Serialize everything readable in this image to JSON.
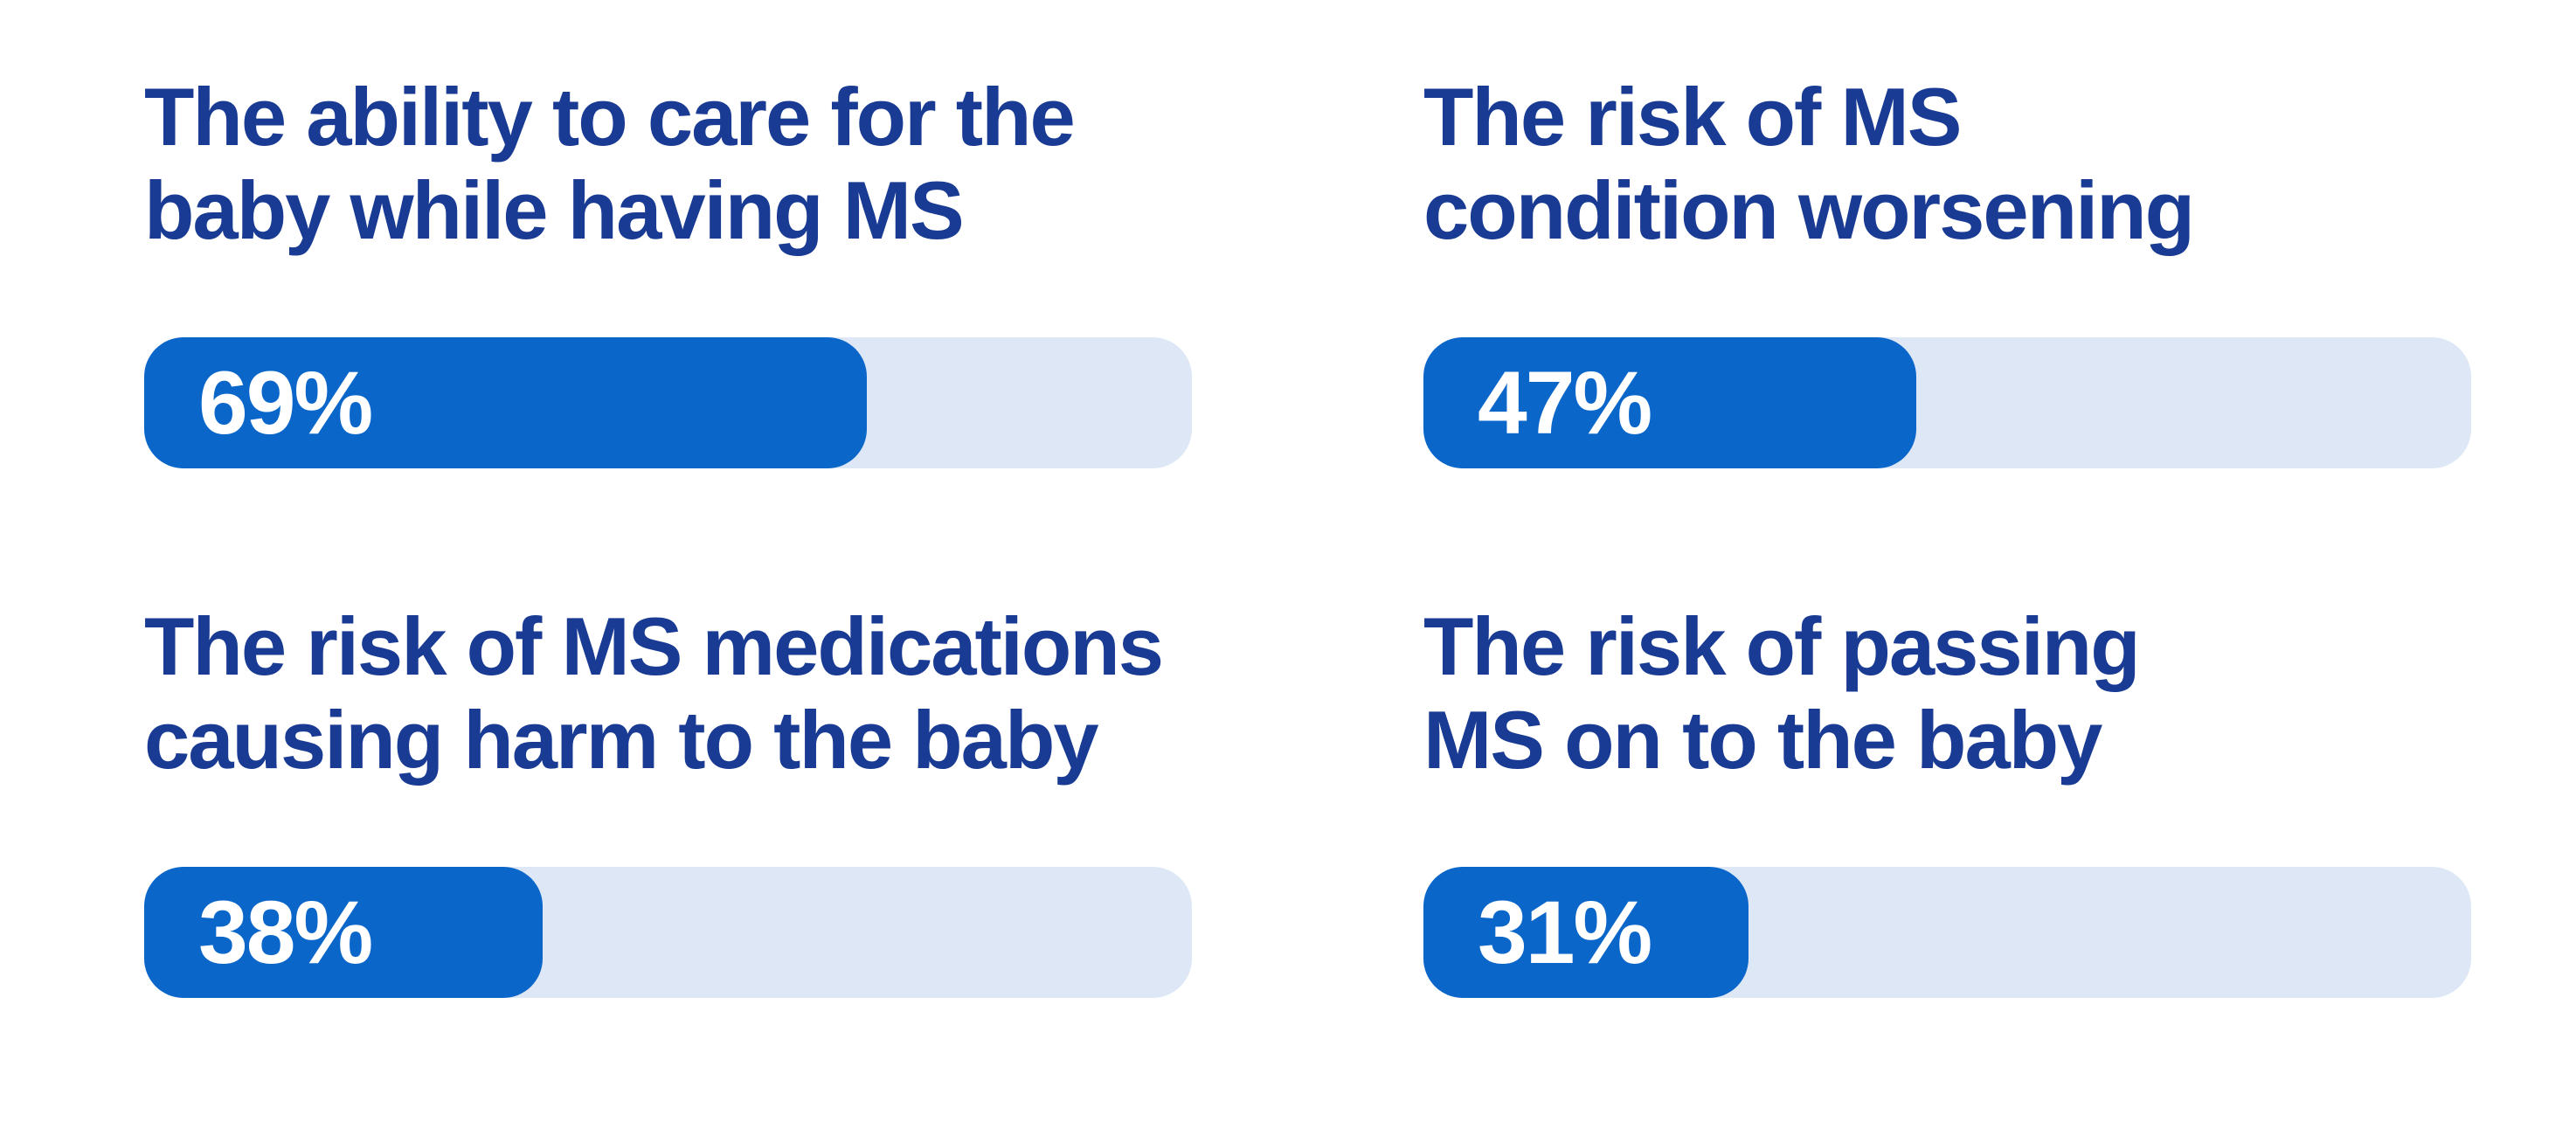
{
  "colors": {
    "bar_fill": "#0B66CA",
    "bar_track": "#DDE7F5",
    "heading_text": "#1A3B94",
    "value_text": "#FFFFFF",
    "background": "#FFFFFF"
  },
  "chart_data": {
    "type": "bar",
    "orientation": "horizontal",
    "layout": "2x2-grid",
    "unit": "%",
    "categories": [
      "The ability to care for the baby while having MS",
      "The risk of MS condition worsening",
      "The risk of MS medications causing harm to the baby",
      "The risk of passing MS on to the baby"
    ],
    "values": [
      69,
      47,
      38,
      31
    ],
    "value_labels": [
      "69%",
      "47%",
      "38%",
      "31%"
    ],
    "xlim": [
      0,
      100
    ],
    "grid": false,
    "legend": false,
    "data_label_position": "inside-bar-left"
  },
  "items": [
    {
      "label": "The ability to care for the\nbaby while having MS",
      "value": 69,
      "value_label": "69%"
    },
    {
      "label": "The risk of MS\ncondition worsening",
      "value": 47,
      "value_label": "47%"
    },
    {
      "label": "The risk of MS medications\ncausing harm to the baby",
      "value": 38,
      "value_label": "38%"
    },
    {
      "label": "The risk of passing\nMS on to the baby",
      "value": 31,
      "value_label": "31%"
    }
  ]
}
